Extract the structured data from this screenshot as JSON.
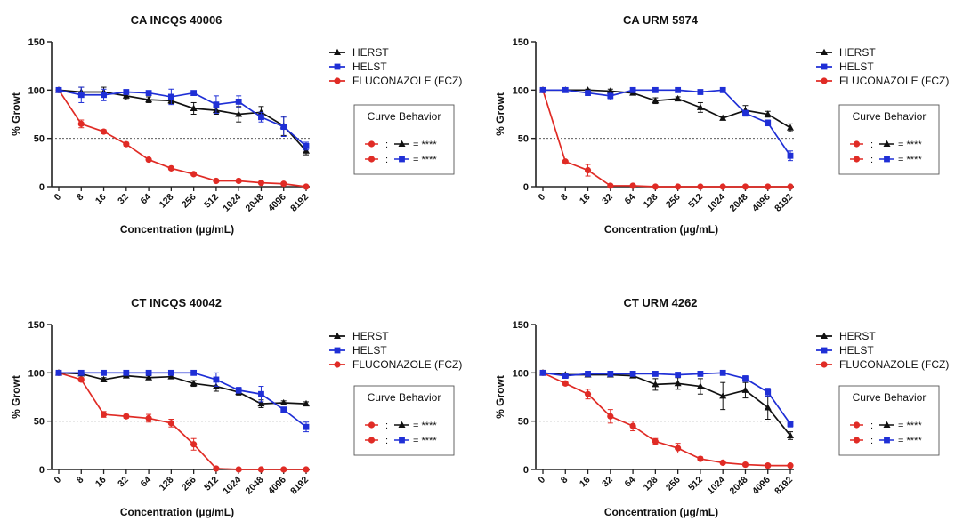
{
  "chart_data": [
    {
      "type": "line",
      "title": "CA INCQS 40006",
      "xlabel": "Concentration (µg/mL)",
      "ylabel": "% Growt",
      "categories": [
        "0",
        "8",
        "16",
        "32",
        "64",
        "128",
        "256",
        "512",
        "1024",
        "2048",
        "4096",
        "8192"
      ],
      "ylim": [
        0,
        150
      ],
      "yticks": [
        0,
        50,
        100,
        150
      ],
      "reference_line": 50,
      "legend_position": "right",
      "series": [
        {
          "name": "HERST",
          "values": [
            100,
            98,
            98,
            94,
            90,
            89,
            81,
            79,
            75,
            77,
            63,
            37
          ],
          "errors": [
            0,
            5,
            5,
            4,
            3,
            3,
            6,
            4,
            8,
            6,
            10,
            4
          ]
        },
        {
          "name": "HELST",
          "values": [
            100,
            95,
            95,
            98,
            97,
            93,
            97,
            85,
            88,
            72,
            62,
            42
          ],
          "errors": [
            0,
            8,
            6,
            2,
            2,
            8,
            2,
            9,
            6,
            5,
            10,
            4
          ]
        },
        {
          "name": "FLUCONAZOLE (FCZ)",
          "values": [
            100,
            65,
            57,
            44,
            28,
            19,
            13,
            6,
            6,
            4,
            3,
            0
          ],
          "errors": [
            0,
            4,
            2,
            2,
            1,
            1,
            1,
            1,
            1,
            1,
            1,
            0
          ]
        }
      ],
      "box": {
        "title": "Curve Behavior",
        "rows": [
          {
            "left": "FLUCONAZOLE (FCZ)",
            "right": "HERST",
            "separator": ":",
            "result": "= ****"
          },
          {
            "left": "FLUCONAZOLE (FCZ)",
            "right": "HELST",
            "separator": ":",
            "result": "= ****"
          }
        ]
      }
    },
    {
      "type": "line",
      "title": "CA URM 5974",
      "xlabel": "Concentration (µg/mL)",
      "ylabel": "% Growt",
      "categories": [
        "0",
        "8",
        "16",
        "32",
        "64",
        "128",
        "256",
        "512",
        "1024",
        "2048",
        "4096",
        "8192"
      ],
      "ylim": [
        0,
        150
      ],
      "yticks": [
        0,
        50,
        100,
        150
      ],
      "reference_line": 50,
      "legend_position": "right",
      "series": [
        {
          "name": "HERST",
          "values": [
            100,
            100,
            100,
            99,
            97,
            89,
            91,
            82,
            71,
            79,
            75,
            61
          ],
          "errors": [
            0,
            0,
            1,
            2,
            2,
            3,
            2,
            5,
            2,
            5,
            3,
            4
          ]
        },
        {
          "name": "HELST",
          "values": [
            100,
            100,
            97,
            94,
            100,
            100,
            100,
            98,
            100,
            76,
            66,
            32
          ],
          "errors": [
            0,
            0,
            2,
            4,
            2,
            1,
            1,
            2,
            1,
            3,
            3,
            5
          ]
        },
        {
          "name": "FLUCONAZOLE (FCZ)",
          "values": [
            100,
            26,
            17,
            1,
            1,
            0,
            0,
            0,
            0,
            0,
            0,
            0
          ],
          "errors": [
            0,
            1,
            6,
            1,
            1,
            0,
            0,
            0,
            0,
            0,
            0,
            0
          ]
        }
      ],
      "box": {
        "title": "Curve Behavior",
        "rows": [
          {
            "left": "FLUCONAZOLE (FCZ)",
            "right": "HERST",
            "separator": ":",
            "result": "= ****"
          },
          {
            "left": "FLUCONAZOLE (FCZ)",
            "right": "HELST",
            "separator": ":",
            "result": "= ****"
          }
        ]
      }
    },
    {
      "type": "line",
      "title": "CT INCQS 40042",
      "xlabel": "Concentration (µg/mL)",
      "ylabel": "% Growt",
      "categories": [
        "0",
        "8",
        "16",
        "32",
        "64",
        "128",
        "256",
        "512",
        "1024",
        "2048",
        "4096",
        "8192"
      ],
      "ylim": [
        0,
        150
      ],
      "yticks": [
        0,
        50,
        100,
        150
      ],
      "reference_line": 50,
      "legend_position": "right",
      "series": [
        {
          "name": "HERST",
          "values": [
            100,
            99,
            93,
            97,
            95,
            96,
            89,
            86,
            80,
            68,
            69,
            68
          ],
          "errors": [
            0,
            1,
            2,
            2,
            2,
            2,
            3,
            5,
            3,
            4,
            2,
            2
          ]
        },
        {
          "name": "HELST",
          "values": [
            100,
            100,
            100,
            100,
            100,
            100,
            100,
            93,
            82,
            78,
            62,
            44
          ],
          "errors": [
            0,
            1,
            1,
            1,
            1,
            1,
            1,
            7,
            3,
            8,
            2,
            5
          ]
        },
        {
          "name": "FLUCONAZOLE (FCZ)",
          "values": [
            100,
            93,
            57,
            55,
            53,
            48,
            26,
            1,
            0,
            0,
            0,
            0
          ],
          "errors": [
            0,
            2,
            3,
            2,
            4,
            4,
            6,
            1,
            0,
            0,
            0,
            0
          ]
        }
      ],
      "box": {
        "title": "Curve Behavior",
        "rows": [
          {
            "left": "FLUCONAZOLE (FCZ)",
            "right": "HERST",
            "separator": ":",
            "result": "= ****"
          },
          {
            "left": "FLUCONAZOLE (FCZ)",
            "right": "HELST",
            "separator": ":",
            "result": "= ****"
          }
        ]
      }
    },
    {
      "type": "line",
      "title": "CT URM 4262",
      "xlabel": "Concentration (µg/mL)",
      "ylabel": "% Growt",
      "categories": [
        "0",
        "8",
        "16",
        "32",
        "64",
        "128",
        "256",
        "512",
        "1024",
        "2048",
        "4096",
        "8192"
      ],
      "ylim": [
        0,
        150
      ],
      "yticks": [
        0,
        50,
        100,
        150
      ],
      "reference_line": 50,
      "legend_position": "right",
      "series": [
        {
          "name": "HERST",
          "values": [
            100,
            98,
            98,
            98,
            97,
            88,
            89,
            86,
            76,
            82,
            64,
            35
          ],
          "errors": [
            0,
            1,
            1,
            1,
            2,
            6,
            6,
            8,
            14,
            8,
            12,
            4
          ]
        },
        {
          "name": "HELST",
          "values": [
            100,
            97,
            99,
            99,
            99,
            99,
            98,
            99,
            100,
            94,
            80,
            47
          ],
          "errors": [
            0,
            1,
            1,
            1,
            1,
            1,
            1,
            1,
            2,
            3,
            4,
            3
          ]
        },
        {
          "name": "FLUCONAZOLE (FCZ)",
          "values": [
            100,
            89,
            78,
            55,
            45,
            29,
            22,
            11,
            7,
            5,
            4,
            4
          ],
          "errors": [
            0,
            2,
            5,
            7,
            5,
            3,
            5,
            2,
            1,
            1,
            1,
            1
          ]
        }
      ],
      "box": {
        "title": "Curve Behavior",
        "rows": [
          {
            "left": "FLUCONAZOLE (FCZ)",
            "right": "HERST",
            "separator": ":",
            "result": "= ****"
          },
          {
            "left": "FLUCONAZOLE (FCZ)",
            "right": "HELST",
            "separator": ":",
            "result": "= ****"
          }
        ]
      }
    }
  ],
  "colors": {
    "HERST": "#111111",
    "HELST": "#1f2fd6",
    "FLUCONAZOLE (FCZ)": "#e02b25",
    "axis": "#222222",
    "reference_line": "#444444"
  },
  "markers": {
    "HERST": "triangle",
    "HELST": "square",
    "FLUCONAZOLE (FCZ)": "circle"
  }
}
